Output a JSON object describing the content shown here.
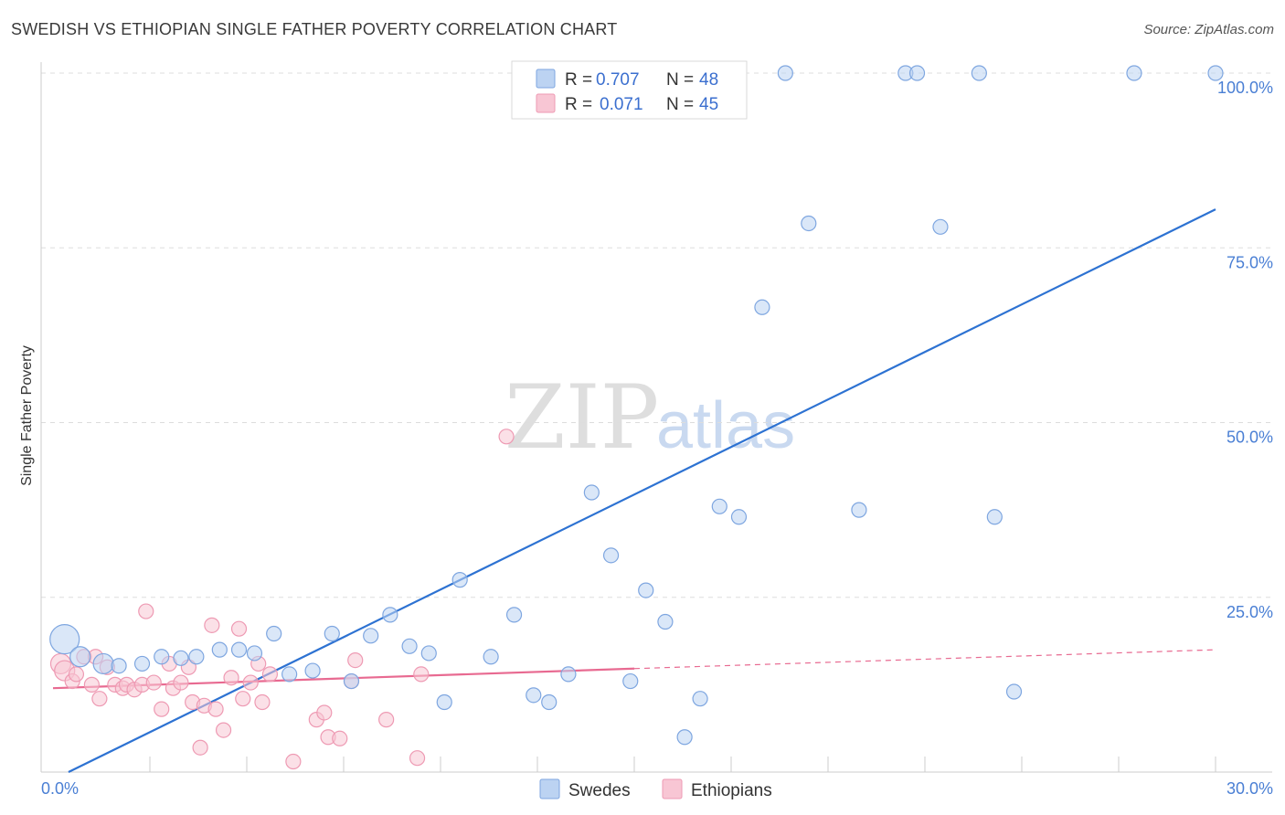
{
  "title": "SWEDISH VS ETHIOPIAN SINGLE FATHER POVERTY CORRELATION CHART",
  "source": "Source: ZipAtlas.com",
  "watermark": {
    "zip": "ZIP",
    "atlas": "atlas"
  },
  "colors": {
    "swedes_fill": "#bcd3f2",
    "swedes_stroke": "#7ea6e0",
    "swedes_line": "#2d72d2",
    "ethiopians_fill": "#f8c6d4",
    "ethiopians_stroke": "#ee9ab3",
    "ethiopians_line": "#e86a91",
    "tick_text": "#4a7fd4",
    "grid": "#dddddd"
  },
  "legend": {
    "rows": [
      {
        "r_label": "R =",
        "r_value": "0.707",
        "n_label": "N =",
        "n_value": "48",
        "series": "swedes"
      },
      {
        "r_label": "R =",
        "r_value": "0.071",
        "n_label": "N =",
        "n_value": "45",
        "series": "ethiopians"
      }
    ]
  },
  "bottom_legend": [
    {
      "label": "Swedes",
      "series": "swedes"
    },
    {
      "label": "Ethiopians",
      "series": "ethiopians"
    }
  ],
  "chart_data": {
    "type": "scatter",
    "title": "SWEDISH VS ETHIOPIAN SINGLE FATHER POVERTY CORRELATION CHART",
    "xlabel": "",
    "ylabel": "Single Father Poverty",
    "xlim": [
      0,
      30
    ],
    "ylim": [
      0,
      100
    ],
    "x_tick_labels": [
      {
        "value": 0,
        "label": "0.0%"
      },
      {
        "value": 30,
        "label": "30.0%"
      }
    ],
    "y_tick_labels": [
      {
        "value": 25,
        "label": "25.0%"
      },
      {
        "value": 50,
        "label": "50.0%"
      },
      {
        "value": 75,
        "label": "75.0%"
      },
      {
        "value": 100,
        "label": "100.0%"
      }
    ],
    "series": [
      {
        "name": "Swedes",
        "key": "swedes",
        "trend": {
          "x0": 0.4,
          "y0": 0.0,
          "x1": 30.0,
          "y1": 80.5,
          "dashed_to": null
        },
        "points": [
          {
            "x": 0.3,
            "y": 19.0,
            "s": 3
          },
          {
            "x": 0.7,
            "y": 16.5,
            "s": 2
          },
          {
            "x": 1.3,
            "y": 15.5,
            "s": 2
          },
          {
            "x": 1.7,
            "y": 15.2,
            "s": 1
          },
          {
            "x": 2.3,
            "y": 15.5,
            "s": 1
          },
          {
            "x": 2.8,
            "y": 16.5,
            "s": 1
          },
          {
            "x": 3.3,
            "y": 16.3,
            "s": 1
          },
          {
            "x": 3.7,
            "y": 16.5,
            "s": 1
          },
          {
            "x": 4.3,
            "y": 17.5,
            "s": 1
          },
          {
            "x": 4.8,
            "y": 17.5,
            "s": 1
          },
          {
            "x": 5.2,
            "y": 17.0,
            "s": 1
          },
          {
            "x": 5.7,
            "y": 19.8,
            "s": 1
          },
          {
            "x": 6.1,
            "y": 14.0,
            "s": 1
          },
          {
            "x": 6.7,
            "y": 14.5,
            "s": 1
          },
          {
            "x": 7.2,
            "y": 19.8,
            "s": 1
          },
          {
            "x": 7.7,
            "y": 13.0,
            "s": 1
          },
          {
            "x": 8.2,
            "y": 19.5,
            "s": 1
          },
          {
            "x": 8.7,
            "y": 22.5,
            "s": 1
          },
          {
            "x": 9.2,
            "y": 18.0,
            "s": 1
          },
          {
            "x": 9.7,
            "y": 17.0,
            "s": 1
          },
          {
            "x": 10.1,
            "y": 10.0,
            "s": 1
          },
          {
            "x": 10.5,
            "y": 27.5,
            "s": 1
          },
          {
            "x": 11.3,
            "y": 16.5,
            "s": 1
          },
          {
            "x": 11.9,
            "y": 22.5,
            "s": 1
          },
          {
            "x": 12.4,
            "y": 11.0,
            "s": 1
          },
          {
            "x": 12.8,
            "y": 10.0,
            "s": 1
          },
          {
            "x": 13.3,
            "y": 14.0,
            "s": 1
          },
          {
            "x": 13.9,
            "y": 40.0,
            "s": 1
          },
          {
            "x": 14.4,
            "y": 31.0,
            "s": 1
          },
          {
            "x": 14.9,
            "y": 13.0,
            "s": 1
          },
          {
            "x": 15.3,
            "y": 26.0,
            "s": 1
          },
          {
            "x": 15.8,
            "y": 21.5,
            "s": 1
          },
          {
            "x": 16.3,
            "y": 5.0,
            "s": 1
          },
          {
            "x": 16.7,
            "y": 10.5,
            "s": 1
          },
          {
            "x": 17.2,
            "y": 38.0,
            "s": 1
          },
          {
            "x": 17.7,
            "y": 36.5,
            "s": 1
          },
          {
            "x": 18.3,
            "y": 66.5,
            "s": 1
          },
          {
            "x": 18.9,
            "y": 100.0,
            "s": 1
          },
          {
            "x": 19.5,
            "y": 78.5,
            "s": 1
          },
          {
            "x": 20.8,
            "y": 37.5,
            "s": 1
          },
          {
            "x": 22.0,
            "y": 100.0,
            "s": 1
          },
          {
            "x": 22.3,
            "y": 100.0,
            "s": 1
          },
          {
            "x": 22.9,
            "y": 78.0,
            "s": 1
          },
          {
            "x": 23.9,
            "y": 100.0,
            "s": 1
          },
          {
            "x": 24.8,
            "y": 11.5,
            "s": 1
          },
          {
            "x": 24.3,
            "y": 36.5,
            "s": 1
          },
          {
            "x": 27.9,
            "y": 100.0,
            "s": 1
          },
          {
            "x": 30.0,
            "y": 100.0,
            "s": 1
          }
        ]
      },
      {
        "name": "Ethiopians",
        "key": "ethiopians",
        "trend": {
          "x0": 0.0,
          "y0": 12.0,
          "x1": 15.0,
          "y1": 14.8,
          "dashed_to": {
            "x": 30.0,
            "y": 17.5
          }
        },
        "points": [
          {
            "x": 0.2,
            "y": 15.5,
            "s": 2
          },
          {
            "x": 0.3,
            "y": 14.5,
            "s": 2
          },
          {
            "x": 0.5,
            "y": 13.0,
            "s": 1
          },
          {
            "x": 0.6,
            "y": 14.0,
            "s": 1
          },
          {
            "x": 0.8,
            "y": 16.5,
            "s": 1
          },
          {
            "x": 1.0,
            "y": 12.5,
            "s": 1
          },
          {
            "x": 1.1,
            "y": 16.5,
            "s": 1
          },
          {
            "x": 1.2,
            "y": 10.5,
            "s": 1
          },
          {
            "x": 1.4,
            "y": 15.0,
            "s": 1
          },
          {
            "x": 1.6,
            "y": 12.5,
            "s": 1
          },
          {
            "x": 1.8,
            "y": 12.0,
            "s": 1
          },
          {
            "x": 1.9,
            "y": 12.5,
            "s": 1
          },
          {
            "x": 2.1,
            "y": 11.8,
            "s": 1
          },
          {
            "x": 2.3,
            "y": 12.5,
            "s": 1
          },
          {
            "x": 2.4,
            "y": 23.0,
            "s": 1
          },
          {
            "x": 2.6,
            "y": 12.8,
            "s": 1
          },
          {
            "x": 2.8,
            "y": 9.0,
            "s": 1
          },
          {
            "x": 3.0,
            "y": 15.5,
            "s": 1
          },
          {
            "x": 3.1,
            "y": 12.0,
            "s": 1
          },
          {
            "x": 3.3,
            "y": 12.8,
            "s": 1
          },
          {
            "x": 3.5,
            "y": 15.0,
            "s": 1
          },
          {
            "x": 3.6,
            "y": 10.0,
            "s": 1
          },
          {
            "x": 3.8,
            "y": 3.5,
            "s": 1
          },
          {
            "x": 3.9,
            "y": 9.5,
            "s": 1
          },
          {
            "x": 4.1,
            "y": 21.0,
            "s": 1
          },
          {
            "x": 4.2,
            "y": 9.0,
            "s": 1
          },
          {
            "x": 4.4,
            "y": 6.0,
            "s": 1
          },
          {
            "x": 4.6,
            "y": 13.5,
            "s": 1
          },
          {
            "x": 4.8,
            "y": 20.5,
            "s": 1
          },
          {
            "x": 4.9,
            "y": 10.5,
            "s": 1
          },
          {
            "x": 5.1,
            "y": 12.8,
            "s": 1
          },
          {
            "x": 5.3,
            "y": 15.5,
            "s": 1
          },
          {
            "x": 5.4,
            "y": 10.0,
            "s": 1
          },
          {
            "x": 5.6,
            "y": 14.0,
            "s": 1
          },
          {
            "x": 6.2,
            "y": 1.5,
            "s": 1
          },
          {
            "x": 6.8,
            "y": 7.5,
            "s": 1
          },
          {
            "x": 7.0,
            "y": 8.5,
            "s": 1
          },
          {
            "x": 7.1,
            "y": 5.0,
            "s": 1
          },
          {
            "x": 7.4,
            "y": 4.8,
            "s": 1
          },
          {
            "x": 7.7,
            "y": 13.0,
            "s": 1
          },
          {
            "x": 7.8,
            "y": 16.0,
            "s": 1
          },
          {
            "x": 8.6,
            "y": 7.5,
            "s": 1
          },
          {
            "x": 9.5,
            "y": 14.0,
            "s": 1
          },
          {
            "x": 9.4,
            "y": 2.0,
            "s": 1
          },
          {
            "x": 11.7,
            "y": 48.0,
            "s": 1
          }
        ]
      }
    ]
  }
}
